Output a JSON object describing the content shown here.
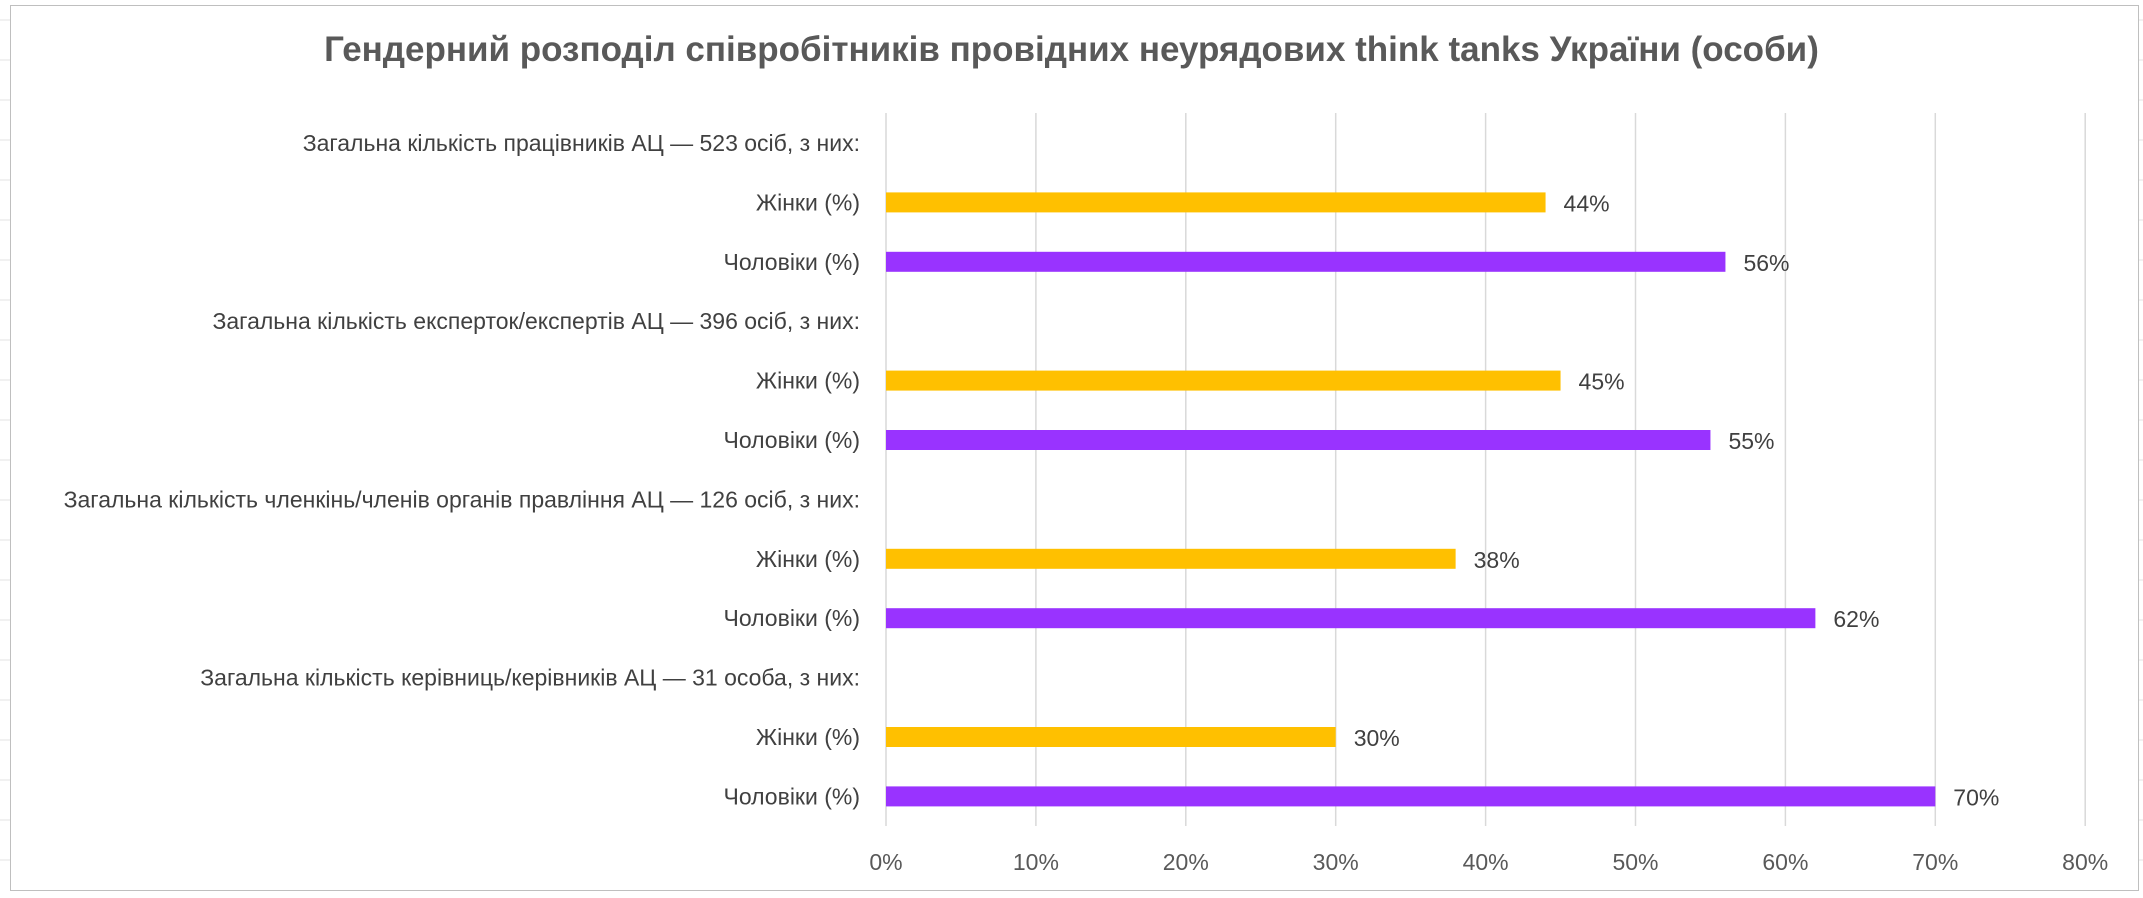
{
  "chart_data": {
    "type": "bar",
    "orientation": "horizontal",
    "title": "Гендерний розподіл співробітників провідних неурядових think tanks України (особи)",
    "xlabel": "",
    "ylabel": "",
    "xlim": [
      0,
      80
    ],
    "x_ticks": [
      "0%",
      "10%",
      "20%",
      "30%",
      "40%",
      "50%",
      "60%",
      "70%",
      "80%"
    ],
    "grid": true,
    "legend": "none",
    "categories": [
      "Загальна кількість працівників АЦ — 523 осіб, з них:",
      "Жінки (%)",
      "Чоловіки (%)",
      "Загальна кількість експерток/експертів АЦ — 396 осіб, з них:",
      "Жінки (%)",
      "Чоловіки (%)",
      "Загальна кількість членкінь/членів органів правління АЦ — 126 осіб, з них:",
      "Жінки (%)",
      "Чоловіки (%)",
      "Загальна кількість керівниць/керівників АЦ — 31 особа, з них:",
      "Жінки (%)",
      "Чоловіки (%)"
    ],
    "values": [
      null,
      44,
      56,
      null,
      45,
      55,
      null,
      38,
      62,
      null,
      30,
      70
    ],
    "data_labels": [
      "",
      "44%",
      "56%",
      "",
      "45%",
      "55%",
      "",
      "38%",
      "62%",
      "",
      "30%",
      "70%"
    ],
    "colors": {
      "women": "#FFC000",
      "men": "#9933FF"
    }
  }
}
